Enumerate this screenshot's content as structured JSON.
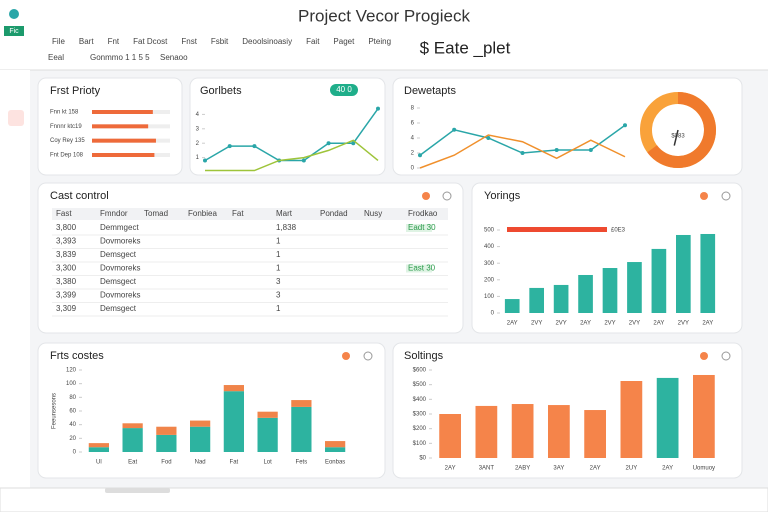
{
  "header": {
    "title": "Project Vecor Progieck",
    "badge": "Fic",
    "menu": [
      "File",
      "Bart",
      "Fnt",
      "Fat Dcost",
      "Fnst",
      "Fsbit",
      "Deoolsinoasiy",
      "Fait",
      "Paget",
      "Pteing"
    ],
    "brand": "$ Eate _plet",
    "toolbar": [
      "Eeal",
      "Gonmmo 1 1 5 5",
      "Senaoo"
    ]
  },
  "chart_data": [
    {
      "type": "hbar",
      "title": "Frst Prioty",
      "categories": [
        "Fnn kt 158",
        "Fnnnr ktc19",
        "Coy Rey 135",
        "Fnt Dep 108"
      ],
      "values": [
        78,
        72,
        82,
        80
      ],
      "xlim": [
        0,
        100
      ],
      "color": "#ee6a3a"
    },
    {
      "type": "line",
      "title": "Gorlbets",
      "badge": "40 0",
      "categories": [
        null,
        null,
        null,
        null,
        null,
        null,
        null,
        null
      ],
      "ylim": [
        0,
        5
      ],
      "yticks": [
        1,
        2,
        3,
        4
      ],
      "series": [
        {
          "name": "Teal",
          "color": "#2aa6a8",
          "values": [
            0.8,
            1.8,
            1.8,
            0.8,
            0.8,
            2.0,
            2.0,
            4.4
          ]
        },
        {
          "name": "Green",
          "color": "#9ec43a",
          "values": [
            0.1,
            0.1,
            0.1,
            0.8,
            1.0,
            1.5,
            2.2,
            0.8
          ]
        }
      ]
    },
    {
      "type": "line",
      "title": "Dewetapts",
      "categories": [
        null,
        null,
        null,
        null,
        null,
        null,
        null
      ],
      "ylim": [
        0,
        8
      ],
      "yticks": [
        0,
        2,
        4,
        6,
        8
      ],
      "series": [
        {
          "name": "Teal",
          "color": "#2aa6a8",
          "values": [
            1.7,
            5.1,
            4.0,
            2.0,
            2.4,
            2.4,
            5.7
          ]
        },
        {
          "name": "Orange",
          "color": "#f0902c",
          "values": [
            0,
            1.7,
            4.4,
            3.5,
            1.3,
            3.7,
            1.5
          ]
        }
      ]
    },
    {
      "type": "gauge",
      "value": 65,
      "label": "$083",
      "ylim": [
        0,
        100
      ],
      "color": "#f07a2c"
    },
    {
      "type": "bar",
      "title": "Yorings",
      "categories": [
        "2AY",
        "2VY",
        "2VY",
        "2AY",
        "2VY",
        "2VY",
        "2AY",
        "2VY",
        "2AY"
      ],
      "values": [
        84,
        151,
        169,
        229,
        271,
        307,
        386,
        470,
        476
      ],
      "ylim": [
        0,
        500
      ],
      "yticks": [
        0,
        100,
        200,
        300,
        400,
        500
      ],
      "color": "#2db3a0",
      "annotation": "£0E3"
    },
    {
      "type": "stacked",
      "title": "Frts costes",
      "axis_label": "Feeunsesons",
      "categories": [
        "Ul",
        "Eat",
        "Fod",
        "Nad",
        "Fat",
        "Lot",
        "Fets",
        "Eonbas"
      ],
      "ylim": [
        0,
        120
      ],
      "yticks": [
        0,
        20,
        40,
        60,
        80,
        100,
        120
      ],
      "series": [
        {
          "name": "Base",
          "color": "#2db3a0",
          "values": [
            7,
            35,
            25,
            37,
            89,
            50,
            66,
            7
          ]
        },
        {
          "name": "Top",
          "color": "#f0844a",
          "values": [
            6,
            7,
            12,
            9,
            9,
            9,
            10,
            9
          ]
        }
      ]
    },
    {
      "type": "bar",
      "title": "Soltings",
      "categories": [
        "2AY",
        "3ANT",
        "2ABY",
        "3AY",
        "2AY",
        "2UY",
        "2AY",
        "Uomuoy"
      ],
      "values": [
        300,
        355,
        368,
        361,
        327,
        525,
        546,
        566
      ],
      "colors": [
        "#f5844a",
        "#f5844a",
        "#f5844a",
        "#f5844a",
        "#f5844a",
        "#f5844a",
        "#2db3a0",
        "#f5844a"
      ],
      "ylim": [
        0,
        600
      ],
      "yticks": [
        {
          "value": 0,
          "label": "$0"
        },
        {
          "value": 100,
          "label": "$100"
        },
        {
          "value": 200,
          "label": "$200"
        },
        {
          "value": 300,
          "label": "$300"
        },
        {
          "value": 400,
          "label": "$400"
        },
        {
          "value": 500,
          "label": "$500"
        },
        {
          "value": 600,
          "label": "$600"
        }
      ]
    }
  ],
  "table": {
    "title": "Cast control",
    "columns": [
      "Fast",
      "Fmndor",
      "Tomad",
      "Fonbiea",
      "Fat",
      "Mart",
      "Pondad",
      "Nusy",
      "Frodkao"
    ],
    "rows": [
      [
        "3,800",
        "Demmgect",
        "",
        "",
        "",
        "1,838",
        "",
        "",
        "Eadt 30"
      ],
      [
        "3,393",
        "Dovmoreks",
        "",
        "",
        "",
        "1",
        "",
        "",
        ""
      ],
      [
        "3,839",
        "Demsgect",
        "",
        "",
        "",
        "1",
        "",
        "",
        ""
      ],
      [
        "3,300",
        "Dovmoreks",
        "",
        "",
        "",
        "1",
        "",
        "",
        "East 30"
      ],
      [
        "3,380",
        "Demsgect",
        "",
        "",
        "",
        "3",
        "",
        "",
        ""
      ],
      [
        "3,399",
        "Dovmoreks",
        "",
        "",
        "",
        "3",
        "",
        "",
        ""
      ],
      [
        "3,309",
        "Demsgect",
        "",
        "",
        "",
        "1",
        "",
        "",
        ""
      ]
    ]
  }
}
